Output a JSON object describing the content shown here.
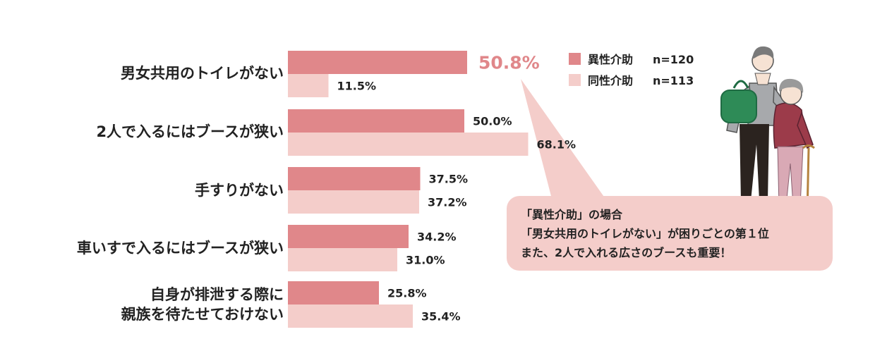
{
  "chart_data": {
    "type": "bar",
    "orientation": "horizontal",
    "categories": [
      "男女共用のトイレがない",
      "2人で入るにはブースが狭い",
      "手すりがない",
      "車いすで入るにはブースが狭い",
      "自身が排泄する際に\n親族を待たせておけない"
    ],
    "series": [
      {
        "name": "異性介助",
        "n_label": "n=120",
        "color": "#e0878a",
        "values": [
          50.8,
          50.0,
          37.5,
          34.2,
          25.8
        ],
        "labels": [
          "50.8%",
          "50.0%",
          "37.5%",
          "34.2%",
          "25.8%"
        ]
      },
      {
        "name": "同性介助",
        "n_label": "n=113",
        "color": "#f4cdca",
        "values": [
          11.5,
          68.1,
          37.2,
          31.0,
          35.4
        ],
        "labels": [
          "11.5%",
          "68.1%",
          "37.2%",
          "31.0%",
          "35.4%"
        ]
      }
    ],
    "highlight": {
      "series": 0,
      "category": 0,
      "color": "#e0878a"
    },
    "unit": "%",
    "grid": false,
    "legend_position": "top-right"
  },
  "callout": {
    "lines": [
      "「異性介助」の場合",
      "「男女共用のトイレがない」が困りごとの第１位",
      "また、2人で入れる広さのブースも重要！"
    ]
  },
  "illustration": {
    "icon": "caregiver-with-elderly-woman-icon",
    "colors": {
      "man_shirt": "#a7a9ac",
      "man_pants": "#2b231f",
      "bag": "#2e8b57",
      "woman_top": "#9c3b4a",
      "woman_pants": "#d9a9b5",
      "hair": "#9a9a9a"
    }
  }
}
